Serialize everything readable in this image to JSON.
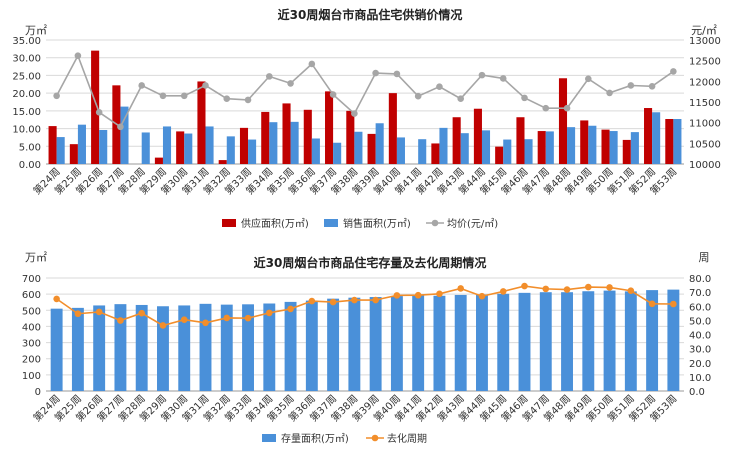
{
  "chart_data": [
    {
      "type": "bar",
      "title": "近30周烟台市商品住宅供销价情况",
      "ylabel": "万㎡",
      "y2label": "元/㎡",
      "ylim": [
        0,
        35
      ],
      "yticks": [
        "0.00",
        "5.00",
        "10.00",
        "15.00",
        "20.00",
        "25.00",
        "30.00",
        "35.00"
      ],
      "y2lim": [
        10000,
        13000
      ],
      "y2ticks": [
        "10000",
        "10500",
        "11000",
        "11500",
        "12000",
        "12500",
        "13000"
      ],
      "grid": true,
      "legend_position": "bottom",
      "categories": [
        "第24周",
        "第25周",
        "第26周",
        "第27周",
        "第28周",
        "第29周",
        "第30周",
        "第31周",
        "第32周",
        "第33周",
        "第34周",
        "第35周",
        "第36周",
        "第37周",
        "第38周",
        "第39周",
        "第40周",
        "第41周",
        "第42周",
        "第43周",
        "第44周",
        "第45周",
        "第46周",
        "第47周",
        "第48周",
        "第49周",
        "第50周",
        "第51周",
        "第52周",
        "第53周"
      ],
      "series": [
        {
          "name": "供应面积(万㎡)",
          "kind": "bar",
          "axis": "left",
          "color": "#c00000",
          "values": [
            10.7,
            5.6,
            32.0,
            22.2,
            0,
            1.8,
            9.2,
            23.3,
            1.1,
            10.2,
            14.7,
            17.1,
            15.3,
            20.5,
            15.0,
            8.5,
            20.0,
            0,
            5.8,
            13.2,
            15.6,
            4.9,
            13.2,
            9.3,
            24.2,
            12.3,
            9.7,
            6.8,
            15.8,
            12.7
          ]
        },
        {
          "name": "销售面积(万㎡)",
          "kind": "bar",
          "axis": "left",
          "color": "#4a90d9",
          "values": [
            7.6,
            11.1,
            9.6,
            16.2,
            8.9,
            10.6,
            8.6,
            10.6,
            7.8,
            6.9,
            11.8,
            11.9,
            7.2,
            6.0,
            9.1,
            11.5,
            7.5,
            7.0,
            10.2,
            8.7,
            9.5,
            6.9,
            7.0,
            9.2,
            10.4,
            10.8,
            9.3,
            9.0,
            14.6,
            12.7
          ]
        },
        {
          "name": "均价(元/㎡)",
          "kind": "line",
          "axis": "right",
          "color": "#a6a6a6",
          "values": [
            11650,
            12620,
            11250,
            10900,
            11900,
            11650,
            11650,
            11900,
            11580,
            11550,
            12120,
            11950,
            12420,
            11680,
            11220,
            12200,
            12180,
            11640,
            11870,
            11580,
            12150,
            12070,
            11600,
            11350,
            11350,
            12060,
            11720,
            11900,
            11880,
            12240
          ]
        }
      ]
    },
    {
      "type": "bar",
      "title": "近30周烟台市商品住宅存量及去化周期情况",
      "ylabel": "万㎡",
      "y2label": "周",
      "ylim": [
        0,
        700
      ],
      "yticks": [
        "0",
        "100",
        "200",
        "300",
        "400",
        "500",
        "600",
        "700"
      ],
      "y2lim": [
        0,
        80
      ],
      "y2ticks": [
        "0.0",
        "10.0",
        "20.0",
        "30.0",
        "40.0",
        "50.0",
        "60.0",
        "70.0",
        "80.0"
      ],
      "grid": true,
      "legend_position": "bottom",
      "categories": [
        "第24周",
        "第25周",
        "第26周",
        "第27周",
        "第28周",
        "第29周",
        "第30周",
        "第31周",
        "第32周",
        "第33周",
        "第34周",
        "第35周",
        "第36周",
        "第37周",
        "第38周",
        "第39周",
        "第40周",
        "第41周",
        "第42周",
        "第43周",
        "第44周",
        "第45周",
        "第46周",
        "第47周",
        "第48周",
        "第49周",
        "第50周",
        "第51周",
        "第52周",
        "第53周"
      ],
      "series": [
        {
          "name": "存量面积(万㎡)",
          "kind": "bar",
          "axis": "left",
          "color": "#4a90d9",
          "values": [
            510,
            515,
            530,
            538,
            533,
            525,
            530,
            540,
            535,
            537,
            542,
            552,
            560,
            572,
            578,
            582,
            588,
            592,
            590,
            595,
            598,
            602,
            608,
            612,
            612,
            618,
            622,
            617,
            625,
            628
          ]
        },
        {
          "name": "去化周期",
          "kind": "line",
          "axis": "right",
          "color": "#f28e2b",
          "values": [
            65.2,
            54.7,
            56.0,
            49.9,
            55.1,
            46.4,
            50.5,
            48.3,
            51.7,
            51.6,
            55.3,
            58.1,
            63.7,
            63.0,
            64.4,
            64.4,
            67.7,
            67.8,
            68.8,
            72.6,
            67.1,
            70.5,
            74.3,
            72.3,
            71.8,
            73.6,
            73.3,
            71.0,
            61.7,
            61.6
          ]
        }
      ]
    }
  ]
}
